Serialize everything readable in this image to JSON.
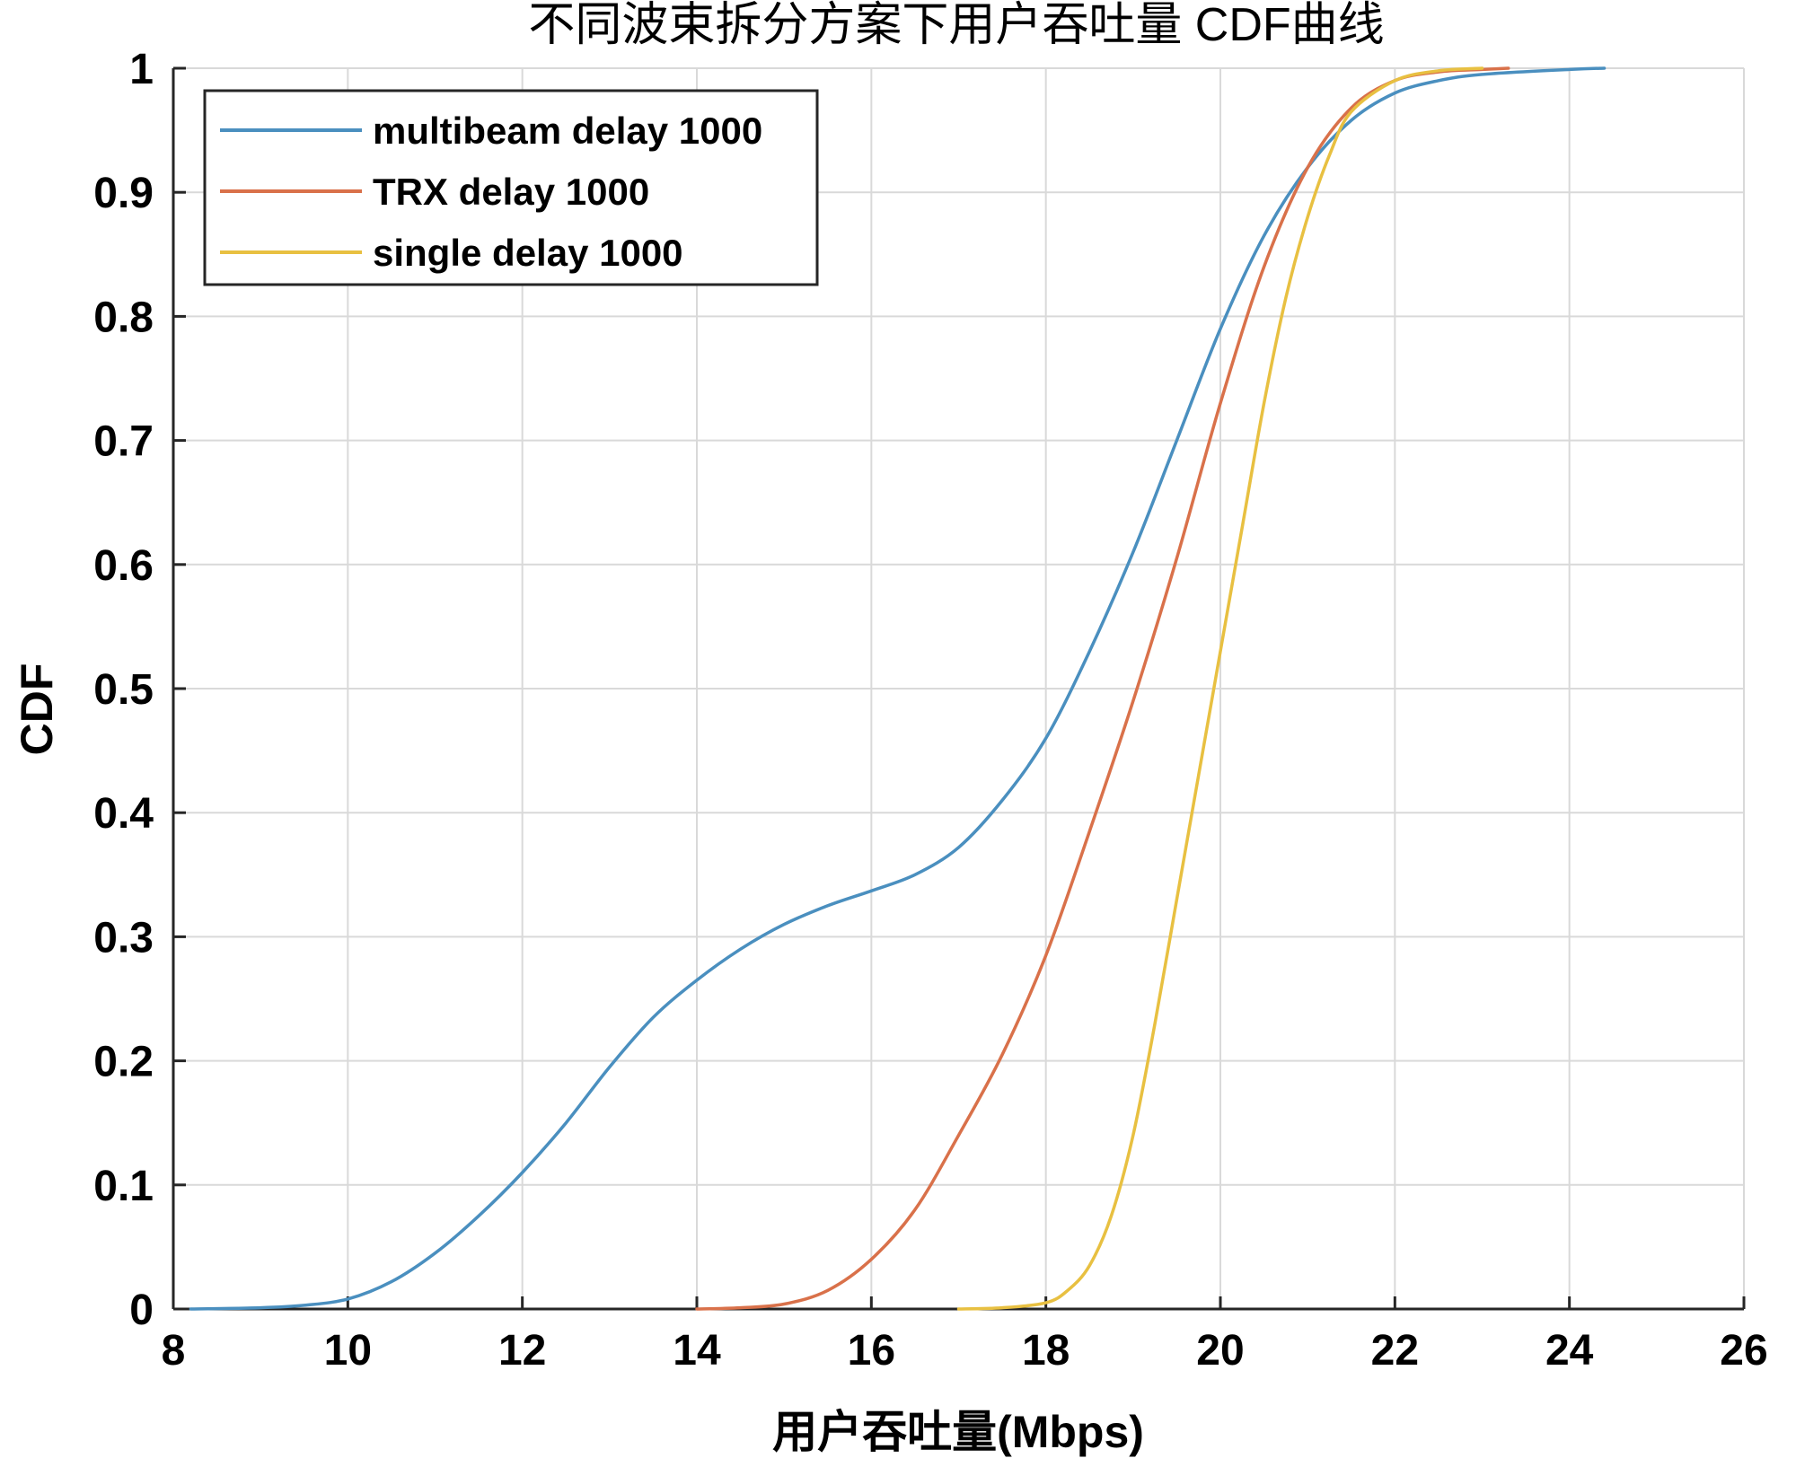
{
  "chart_data": {
    "type": "line",
    "title": "不同波束拆分方案下用户吞吐量 CDF曲线",
    "xlabel": "用户吞吐量(Mbps)",
    "ylabel": "CDF",
    "xlim": [
      8,
      26
    ],
    "ylim": [
      0,
      1
    ],
    "xticks": [
      8,
      10,
      12,
      14,
      16,
      18,
      20,
      22,
      24,
      26
    ],
    "yticks": [
      0,
      0.1,
      0.2,
      0.3,
      0.4,
      0.5,
      0.6,
      0.7,
      0.8,
      0.9,
      1
    ],
    "ytick_labels": [
      "0",
      "0.1",
      "0.2",
      "0.3",
      "0.4",
      "0.5",
      "0.6",
      "0.7",
      "0.8",
      "0.9",
      "1"
    ],
    "grid": true,
    "legend_position": "top-left",
    "series": [
      {
        "name": "multibeam delay 1000",
        "color": "#4a8fbf",
        "x": [
          8.2,
          9,
          9.5,
          10,
          10.5,
          11,
          11.5,
          12,
          12.5,
          13,
          13.5,
          14,
          14.5,
          15,
          15.5,
          16,
          16.5,
          17,
          17.5,
          18,
          18.5,
          19,
          19.5,
          20,
          20.5,
          21,
          21.5,
          22,
          22.5,
          23,
          24,
          24.4
        ],
        "y": [
          0,
          0.001,
          0.003,
          0.008,
          0.022,
          0.045,
          0.075,
          0.11,
          0.15,
          0.195,
          0.235,
          0.265,
          0.29,
          0.31,
          0.325,
          0.337,
          0.35,
          0.372,
          0.41,
          0.46,
          0.53,
          0.61,
          0.7,
          0.79,
          0.865,
          0.92,
          0.958,
          0.98,
          0.99,
          0.995,
          0.999,
          1
        ]
      },
      {
        "name": "TRX delay 1000",
        "color": "#d9714a",
        "x": [
          14,
          14.5,
          15,
          15.5,
          16,
          16.5,
          17,
          17.5,
          18,
          18.5,
          19,
          19.5,
          20,
          20.5,
          21,
          21.5,
          22,
          22.5,
          23,
          23.3
        ],
        "y": [
          0,
          0.001,
          0.004,
          0.015,
          0.04,
          0.08,
          0.14,
          0.205,
          0.285,
          0.385,
          0.49,
          0.605,
          0.73,
          0.84,
          0.92,
          0.968,
          0.99,
          0.997,
          0.999,
          1
        ]
      },
      {
        "name": "single delay 1000",
        "color": "#e8c041",
        "x": [
          17,
          17.5,
          18,
          18.25,
          18.5,
          18.75,
          19,
          19.25,
          19.5,
          19.75,
          20,
          20.25,
          20.5,
          20.75,
          21,
          21.25,
          21.5,
          22,
          22.5,
          23
        ],
        "y": [
          0,
          0.001,
          0.005,
          0.015,
          0.035,
          0.075,
          0.14,
          0.23,
          0.33,
          0.43,
          0.53,
          0.63,
          0.73,
          0.815,
          0.88,
          0.93,
          0.965,
          0.99,
          0.998,
          1
        ]
      }
    ]
  }
}
